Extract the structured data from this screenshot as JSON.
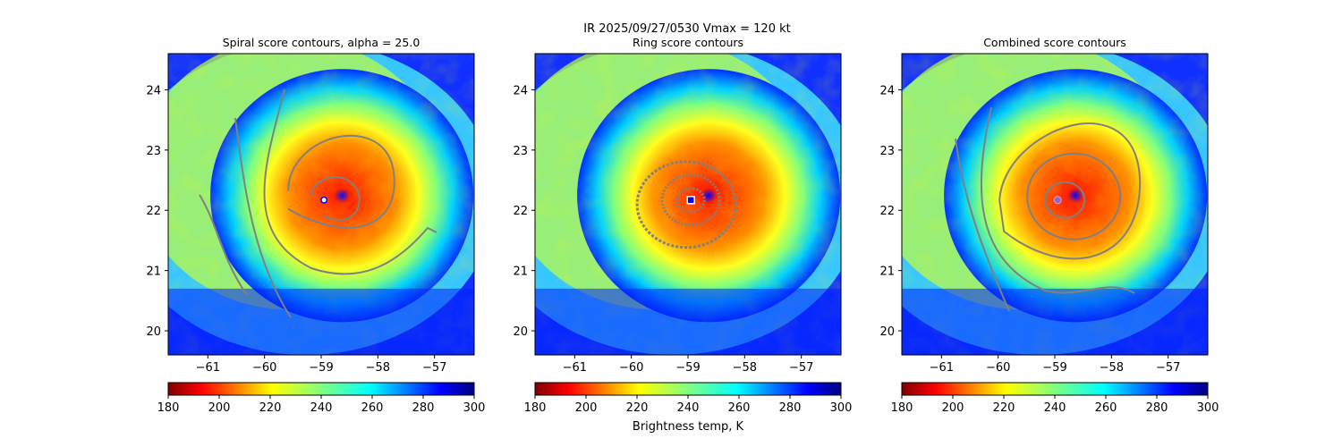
{
  "suptitle_line1": "IR  2025/09/27/0530    Vmax = 120 kt",
  "colors": {
    "ir_map": "jet_r",
    "contour": "#808080",
    "center_marker": "#ffffff",
    "combined_marker": "#9467bd"
  },
  "chart_data": [
    {
      "type": "heatmap",
      "title": "Spiral score contours, alpha = 25.0",
      "xlim": [
        -61.7,
        -56.3
      ],
      "ylim": [
        19.6,
        24.6
      ],
      "x_ticks": [
        "-61",
        "-60",
        "-59",
        "-58",
        "-57"
      ],
      "y_ticks": [
        "20",
        "21",
        "22",
        "23",
        "24"
      ],
      "center": {
        "lon": -58.95,
        "lat": 22.17
      },
      "marker": "dot",
      "colorbar": {
        "min": 180,
        "max": 300,
        "ticks": [
          "180",
          "200",
          "220",
          "240",
          "260",
          "280",
          "300"
        ],
        "label": "",
        "cmap": "jet_r"
      }
    },
    {
      "type": "heatmap",
      "title": "Ring score contours",
      "xlim": [
        -61.7,
        -56.3
      ],
      "ylim": [
        19.6,
        24.6
      ],
      "x_ticks": [
        "-61",
        "-60",
        "-59",
        "-58",
        "-57"
      ],
      "y_ticks": [
        "20",
        "21",
        "22",
        "23",
        "24"
      ],
      "center": {
        "lon": -58.95,
        "lat": 22.17
      },
      "marker": "square",
      "colorbar": {
        "min": 180,
        "max": 300,
        "ticks": [
          "180",
          "200",
          "220",
          "240",
          "260",
          "280",
          "300"
        ],
        "label": "Brightness temp, K",
        "cmap": "jet_r"
      }
    },
    {
      "type": "heatmap",
      "title": "Combined score contours",
      "xlim": [
        -61.7,
        -56.3
      ],
      "ylim": [
        19.6,
        24.6
      ],
      "x_ticks": [
        "-61",
        "-60",
        "-59",
        "-58",
        "-57"
      ],
      "y_ticks": [
        "20",
        "21",
        "22",
        "23",
        "24"
      ],
      "center": {
        "lon": -58.95,
        "lat": 22.17
      },
      "marker": "circle",
      "colorbar": {
        "min": 180,
        "max": 300,
        "ticks": [
          "180",
          "200",
          "220",
          "240",
          "260",
          "280",
          "300"
        ],
        "label": "",
        "cmap": "jet_r"
      }
    }
  ]
}
